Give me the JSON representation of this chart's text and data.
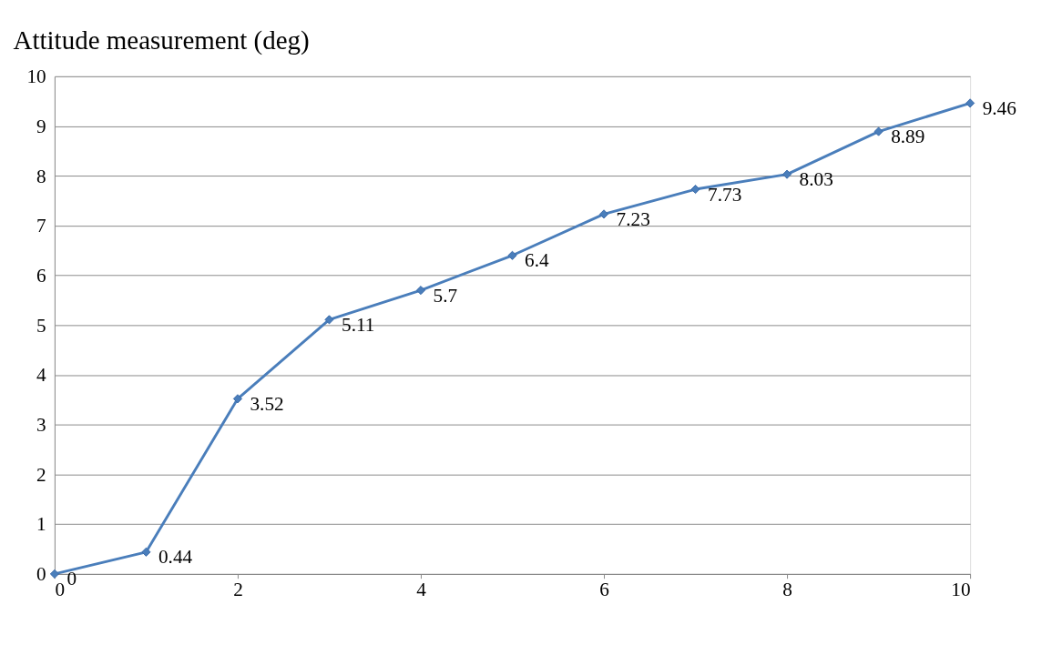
{
  "chart_data": {
    "type": "line",
    "title": "Attitude measurement (deg)",
    "x": [
      0,
      1,
      2,
      3,
      4,
      5,
      6,
      7,
      8,
      9,
      10
    ],
    "series": [
      {
        "color": "#4a7ebb",
        "values": [
          0,
          0.44,
          3.52,
          5.11,
          5.7,
          6.4,
          7.23,
          7.73,
          8.03,
          8.89,
          9.46
        ]
      }
    ],
    "xlim": [
      0,
      10
    ],
    "xticks": [
      0,
      2,
      4,
      6,
      8,
      10
    ],
    "ylim": [
      0,
      10
    ],
    "yticks": [
      0,
      1,
      2,
      3,
      4,
      5,
      6,
      7,
      8,
      9,
      10
    ],
    "grid": "y",
    "marker": "diamond",
    "line_style": "solid",
    "data_labels": true
  }
}
